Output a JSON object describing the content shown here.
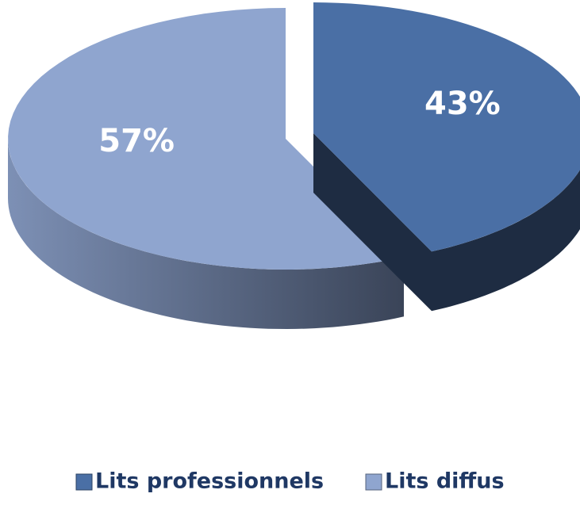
{
  "chart_data": {
    "type": "pie",
    "categories": [
      "Lits professionnels",
      "Lits diffus"
    ],
    "values": [
      43,
      57
    ],
    "value_labels": [
      "43%",
      "57%"
    ],
    "colors": [
      "#4a6fa5",
      "#8fa5cf"
    ],
    "legend": "bottom"
  }
}
